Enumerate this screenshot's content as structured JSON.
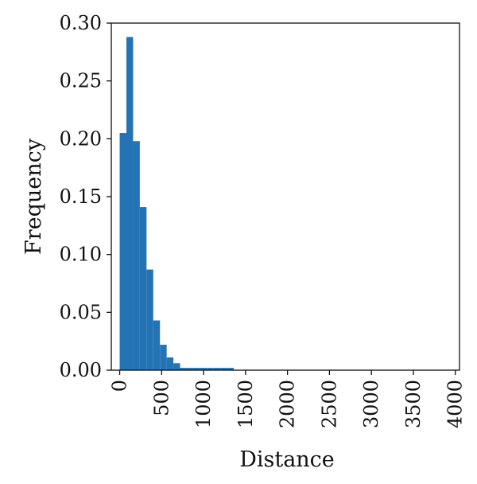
{
  "chart_data": {
    "type": "bar",
    "title": "",
    "xlabel": "Distance",
    "ylabel": "Frequency",
    "xlim": [
      -100,
      4050
    ],
    "ylim": [
      0,
      0.3
    ],
    "x_ticks": [
      0,
      500,
      1000,
      1500,
      2000,
      2500,
      3000,
      3500,
      4000
    ],
    "y_ticks": [
      0.0,
      0.05,
      0.1,
      0.15,
      0.2,
      0.25,
      0.3
    ],
    "y_tick_labels": [
      "0.00",
      "0.05",
      "0.10",
      "0.15",
      "0.20",
      "0.25",
      "0.30"
    ],
    "bin_width": 80,
    "bin_starts": [
      0,
      80,
      160,
      240,
      320,
      400,
      480,
      560,
      640,
      720,
      800,
      880,
      960,
      1040,
      1120,
      1200,
      1280
    ],
    "values": [
      0.205,
      0.288,
      0.198,
      0.141,
      0.087,
      0.043,
      0.022,
      0.011,
      0.006,
      0.002,
      0.002,
      0.002,
      0.002,
      0.002,
      0.002,
      0.002,
      0.002
    ],
    "grid": false,
    "legend": "none",
    "bar_color": "#2474b5"
  }
}
